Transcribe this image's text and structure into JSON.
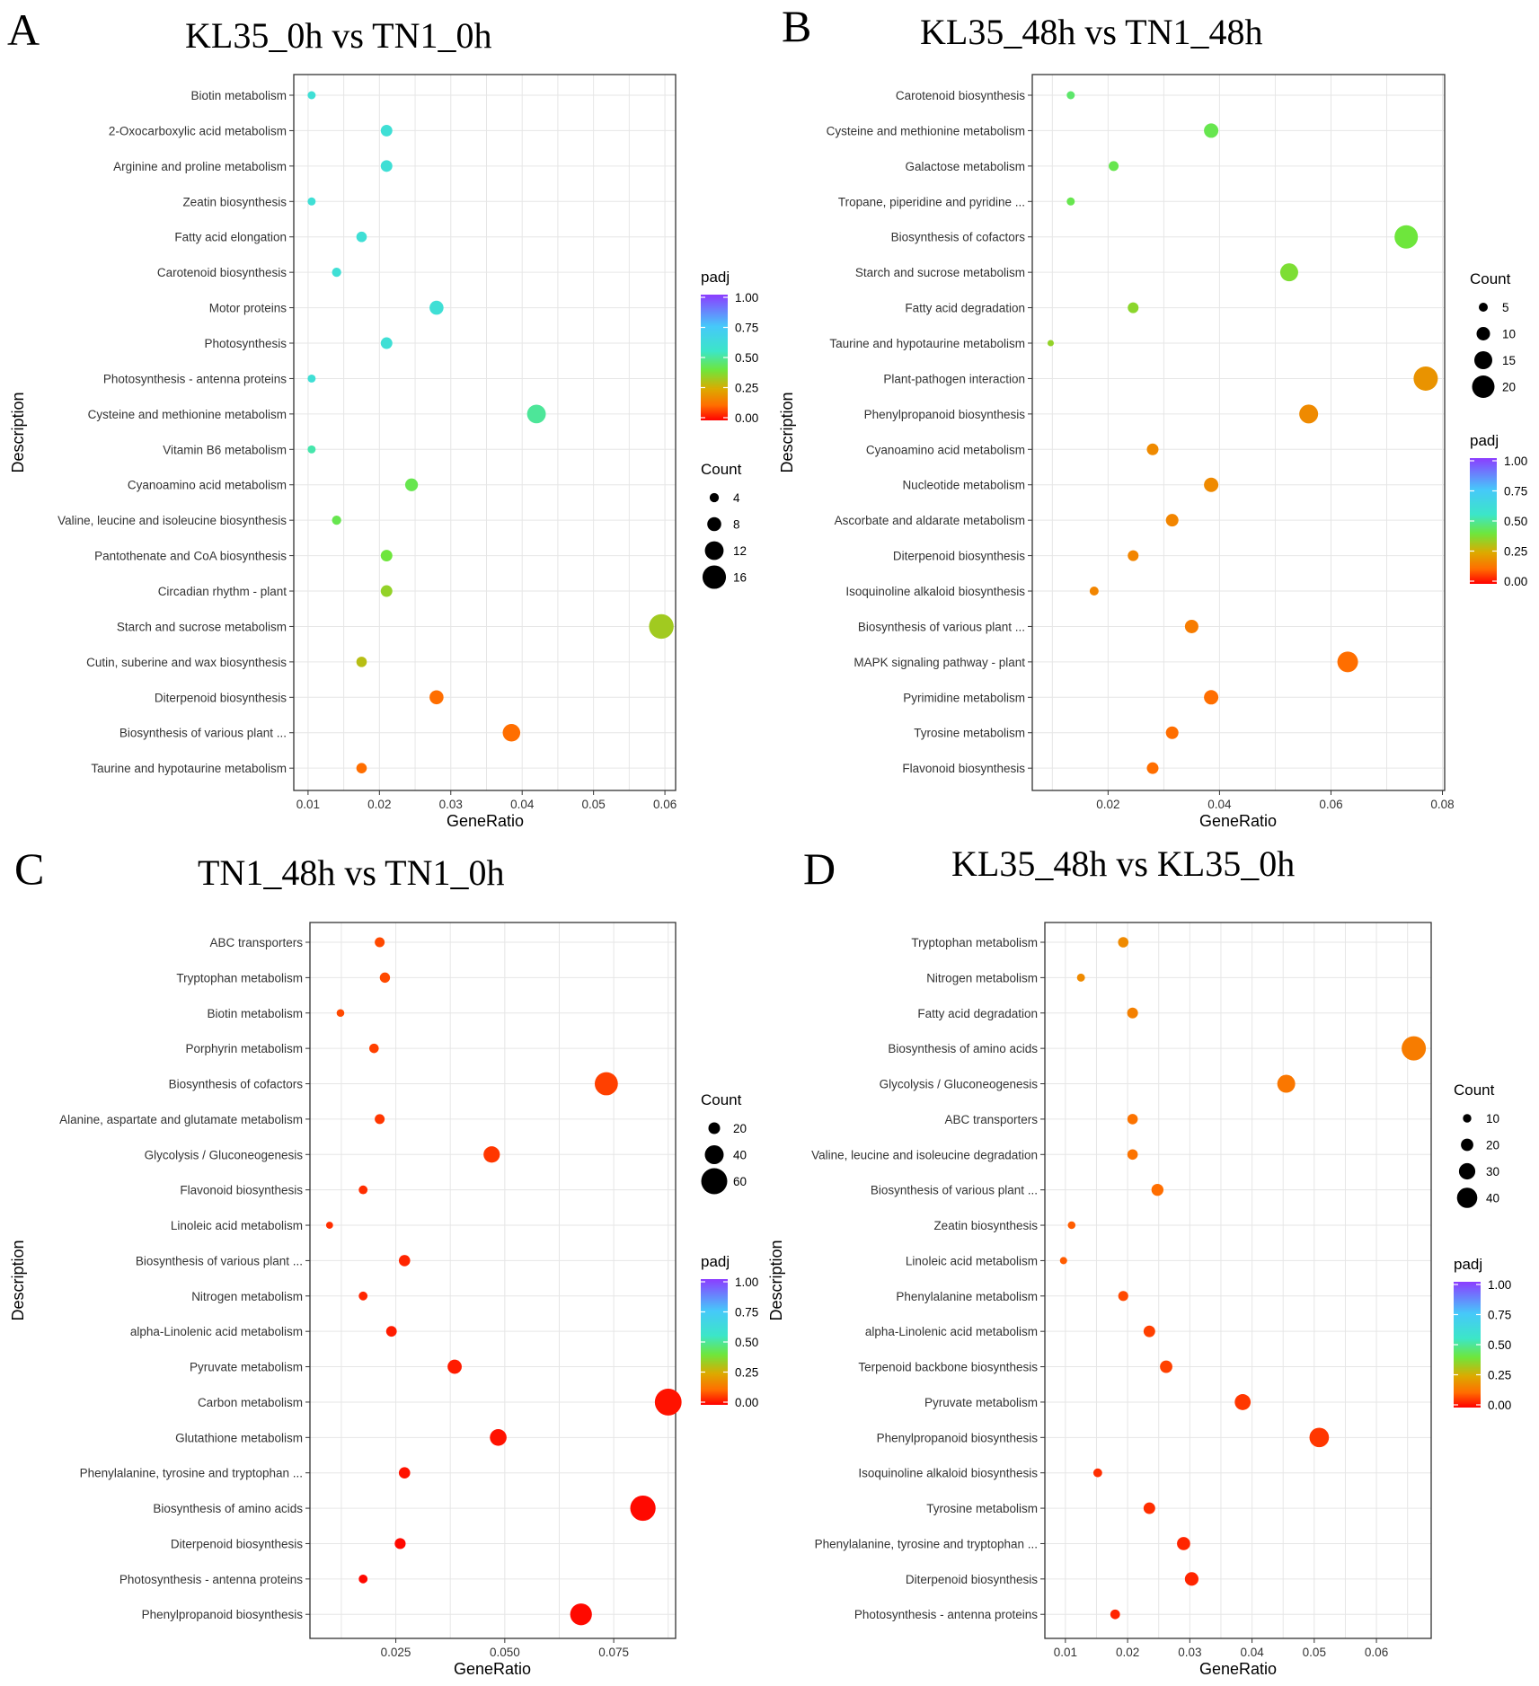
{
  "chart_data": [
    {
      "type": "scatter",
      "panel_label": "A",
      "title": "KL35_0h vs TN1_0h",
      "xlabel": "GeneRatio",
      "ylabel": "Description",
      "xlim": [
        0.008,
        0.0615
      ],
      "xticks": [
        0.01,
        0.02,
        0.03,
        0.04,
        0.05,
        0.06
      ],
      "xtick_labels": [
        "0.01",
        "0.02",
        "0.03",
        "0.04",
        "0.05",
        "0.06"
      ],
      "categories": [
        "Biotin metabolism",
        "2-Oxocarboxylic acid metabolism",
        "Arginine and proline metabolism",
        "Zeatin biosynthesis",
        "Fatty acid elongation",
        "Carotenoid biosynthesis",
        "Motor proteins",
        "Photosynthesis",
        "Photosynthesis - antenna proteins",
        "Cysteine and methionine metabolism",
        "Vitamin B6 metabolism",
        "Cyanoamino acid metabolism",
        "Valine, leucine and isoleucine biosynthesis",
        "Pantothenate and CoA biosynthesis",
        "Circadian rhythm - plant",
        "Starch and sucrose metabolism",
        "Cutin, suberine and wax biosynthesis",
        "Diterpenoid biosynthesis",
        "Biosynthesis of various plant ...",
        "Taurine and hypotaurine metabolism"
      ],
      "gene_ratio": [
        0.0105,
        0.021,
        0.021,
        0.0105,
        0.0175,
        0.014,
        0.028,
        0.021,
        0.0105,
        0.042,
        0.0105,
        0.0245,
        0.014,
        0.021,
        0.021,
        0.0595,
        0.0175,
        0.028,
        0.0385,
        0.0175
      ],
      "count": [
        3,
        6,
        6,
        3,
        5,
        4,
        8,
        6,
        3,
        12,
        3,
        7,
        4,
        6,
        6,
        17,
        5,
        8,
        11,
        5
      ],
      "padj": [
        0.6,
        0.6,
        0.6,
        0.6,
        0.6,
        0.6,
        0.6,
        0.6,
        0.6,
        0.5,
        0.52,
        0.42,
        0.42,
        0.4,
        0.35,
        0.33,
        0.3,
        0.12,
        0.12,
        0.12
      ],
      "color_legend": {
        "title": "padj",
        "ticks": [
          "1.00",
          "0.75",
          "0.50",
          "0.25",
          "0.00"
        ]
      },
      "size_legend": {
        "title": "Count",
        "values": [
          4,
          8,
          12,
          16
        ],
        "labels": [
          "4",
          "8",
          "12",
          "16"
        ]
      },
      "legend_order": [
        "color",
        "size"
      ]
    },
    {
      "type": "scatter",
      "panel_label": "B",
      "title": "KL35_48h vs TN1_48h",
      "xlabel": "GeneRatio",
      "ylabel": "Description",
      "xlim": [
        0.0064,
        0.0804
      ],
      "xticks": [
        0.02,
        0.04,
        0.06,
        0.08
      ],
      "xtick_labels": [
        "0.02",
        "0.04",
        "0.06",
        "0.08"
      ],
      "categories": [
        "Carotenoid biosynthesis",
        "Cysteine and methionine metabolism",
        "Galactose metabolism",
        "Tropane, piperidine and pyridine ...",
        "Biosynthesis of cofactors",
        "Starch and sucrose metabolism",
        "Fatty acid degradation",
        "Taurine and hypotaurine metabolism",
        "Plant-pathogen interaction",
        "Phenylpropanoid biosynthesis",
        "Cyanoamino acid metabolism",
        "Nucleotide metabolism",
        "Ascorbate and aldarate metabolism",
        "Diterpenoid biosynthesis",
        "Isoquinoline alkaloid biosynthesis",
        "Biosynthesis of various plant ...",
        "MAPK signaling pathway - plant",
        "Pyrimidine metabolism",
        "Tyrosine metabolism",
        "Flavonoid biosynthesis"
      ],
      "gene_ratio": [
        0.0133,
        0.0385,
        0.021,
        0.0133,
        0.0735,
        0.0525,
        0.0245,
        0.0097,
        0.077,
        0.056,
        0.028,
        0.0385,
        0.0315,
        0.0245,
        0.0175,
        0.035,
        0.063,
        0.0385,
        0.0315,
        0.028
      ],
      "count": [
        4,
        11,
        6,
        4,
        21,
        15,
        7,
        2,
        22,
        16,
        8,
        11,
        9,
        7,
        5,
        10,
        18,
        11,
        9,
        8
      ],
      "padj": [
        0.45,
        0.42,
        0.42,
        0.42,
        0.4,
        0.38,
        0.36,
        0.35,
        0.2,
        0.18,
        0.18,
        0.18,
        0.17,
        0.17,
        0.17,
        0.15,
        0.12,
        0.12,
        0.12,
        0.12
      ],
      "color_legend": {
        "title": "padj",
        "ticks": [
          "1.00",
          "0.75",
          "0.50",
          "0.25",
          "0.00"
        ]
      },
      "size_legend": {
        "title": "Count",
        "values": [
          5,
          10,
          15,
          20
        ],
        "labels": [
          "5",
          "10",
          "15",
          "20"
        ]
      },
      "legend_order": [
        "size",
        "color"
      ]
    },
    {
      "type": "scatter",
      "panel_label": "C",
      "title": "TN1_48h vs TN1_0h",
      "xlabel": "GeneRatio",
      "ylabel": "Description",
      "xlim": [
        0.0053,
        0.0892
      ],
      "xticks": [
        0.025,
        0.05,
        0.075
      ],
      "xtick_labels": [
        "0.025",
        "0.050",
        "0.075"
      ],
      "categories": [
        "ABC transporters",
        "Tryptophan metabolism",
        "Biotin metabolism",
        "Porphyrin metabolism",
        "Biosynthesis of cofactors",
        "Alanine, aspartate and glutamate metabolism",
        "Glycolysis / Gluconeogenesis",
        "Flavonoid biosynthesis",
        "Linoleic acid metabolism",
        "Biosynthesis of various plant ...",
        "Nitrogen metabolism",
        "alpha-Linolenic acid metabolism",
        "Pyruvate metabolism",
        "Carbon metabolism",
        "Glutathione metabolism",
        "Phenylalanine, tyrosine and tryptophan ...",
        "Biosynthesis of amino acids",
        "Diterpenoid biosynthesis",
        "Photosynthesis - antenna proteins",
        "Phenylpropanoid biosynthesis"
      ],
      "gene_ratio": [
        0.0213,
        0.0225,
        0.0123,
        0.02,
        0.0733,
        0.0213,
        0.047,
        0.0175,
        0.0098,
        0.027,
        0.0175,
        0.024,
        0.0385,
        0.0875,
        0.0485,
        0.027,
        0.0817,
        0.026,
        0.0175,
        0.0675
      ],
      "count": [
        15,
        16,
        9,
        14,
        52,
        15,
        33,
        12,
        7,
        19,
        12,
        17,
        27,
        62,
        34,
        19,
        58,
        18,
        12,
        48
      ],
      "padj": [
        0.08,
        0.08,
        0.08,
        0.07,
        0.07,
        0.06,
        0.06,
        0.05,
        0.05,
        0.04,
        0.04,
        0.03,
        0.03,
        0.02,
        0.02,
        0.02,
        0.01,
        0.01,
        0.01,
        0.01
      ],
      "color_legend": {
        "title": "padj",
        "ticks": [
          "1.00",
          "0.75",
          "0.50",
          "0.25",
          "0.00"
        ]
      },
      "size_legend": {
        "title": "Count",
        "values": [
          20,
          40,
          60
        ],
        "labels": [
          "20",
          "40",
          "60"
        ]
      },
      "legend_order": [
        "size",
        "color"
      ]
    },
    {
      "type": "scatter",
      "panel_label": "D",
      "title": "KL35_48h vs KL35_0h",
      "xlabel": "GeneRatio",
      "ylabel": "Description",
      "xlim": [
        0.0067,
        0.0688
      ],
      "xticks": [
        0.01,
        0.02,
        0.03,
        0.04,
        0.05,
        0.06
      ],
      "xtick_labels": [
        "0.01",
        "0.02",
        "0.03",
        "0.04",
        "0.05",
        "0.06"
      ],
      "categories": [
        "Tryptophan metabolism",
        "Nitrogen metabolism",
        "Fatty acid degradation",
        "Biosynthesis of amino acids",
        "Glycolysis / Gluconeogenesis",
        "ABC transporters",
        "Valine, leucine and isoleucine degradation",
        "Biosynthesis of various plant ...",
        "Zeatin biosynthesis",
        "Linoleic acid metabolism",
        "Phenylalanine metabolism",
        "alpha-Linolenic acid metabolism",
        "Terpenoid backbone biosynthesis",
        "Pyruvate metabolism",
        "Phenylpropanoid biosynthesis",
        "Isoquinoline alkaloid biosynthesis",
        "Tyrosine metabolism",
        "Phenylalanine, tyrosine and tryptophan ...",
        "Diterpenoid biosynthesis",
        "Photosynthesis - antenna proteins"
      ],
      "gene_ratio": [
        0.0193,
        0.0125,
        0.0208,
        0.066,
        0.0455,
        0.0208,
        0.0208,
        0.0248,
        0.011,
        0.0097,
        0.0193,
        0.0235,
        0.0262,
        0.0385,
        0.0508,
        0.0152,
        0.0235,
        0.029,
        0.0303,
        0.018
      ],
      "count": [
        15,
        9,
        16,
        50,
        34,
        15,
        15,
        19,
        8,
        7,
        14,
        18,
        20,
        29,
        38,
        11,
        18,
        22,
        23,
        13
      ],
      "padj": [
        0.18,
        0.18,
        0.16,
        0.15,
        0.14,
        0.13,
        0.13,
        0.12,
        0.1,
        0.1,
        0.08,
        0.07,
        0.07,
        0.06,
        0.06,
        0.05,
        0.05,
        0.04,
        0.04,
        0.04
      ],
      "color_legend": {
        "title": "padj",
        "ticks": [
          "1.00",
          "0.75",
          "0.50",
          "0.25",
          "0.00"
        ]
      },
      "size_legend": {
        "title": "Count",
        "values": [
          10,
          20,
          30,
          40
        ],
        "labels": [
          "10",
          "20",
          "30",
          "40"
        ]
      },
      "legend_order": [
        "size",
        "color"
      ]
    }
  ]
}
